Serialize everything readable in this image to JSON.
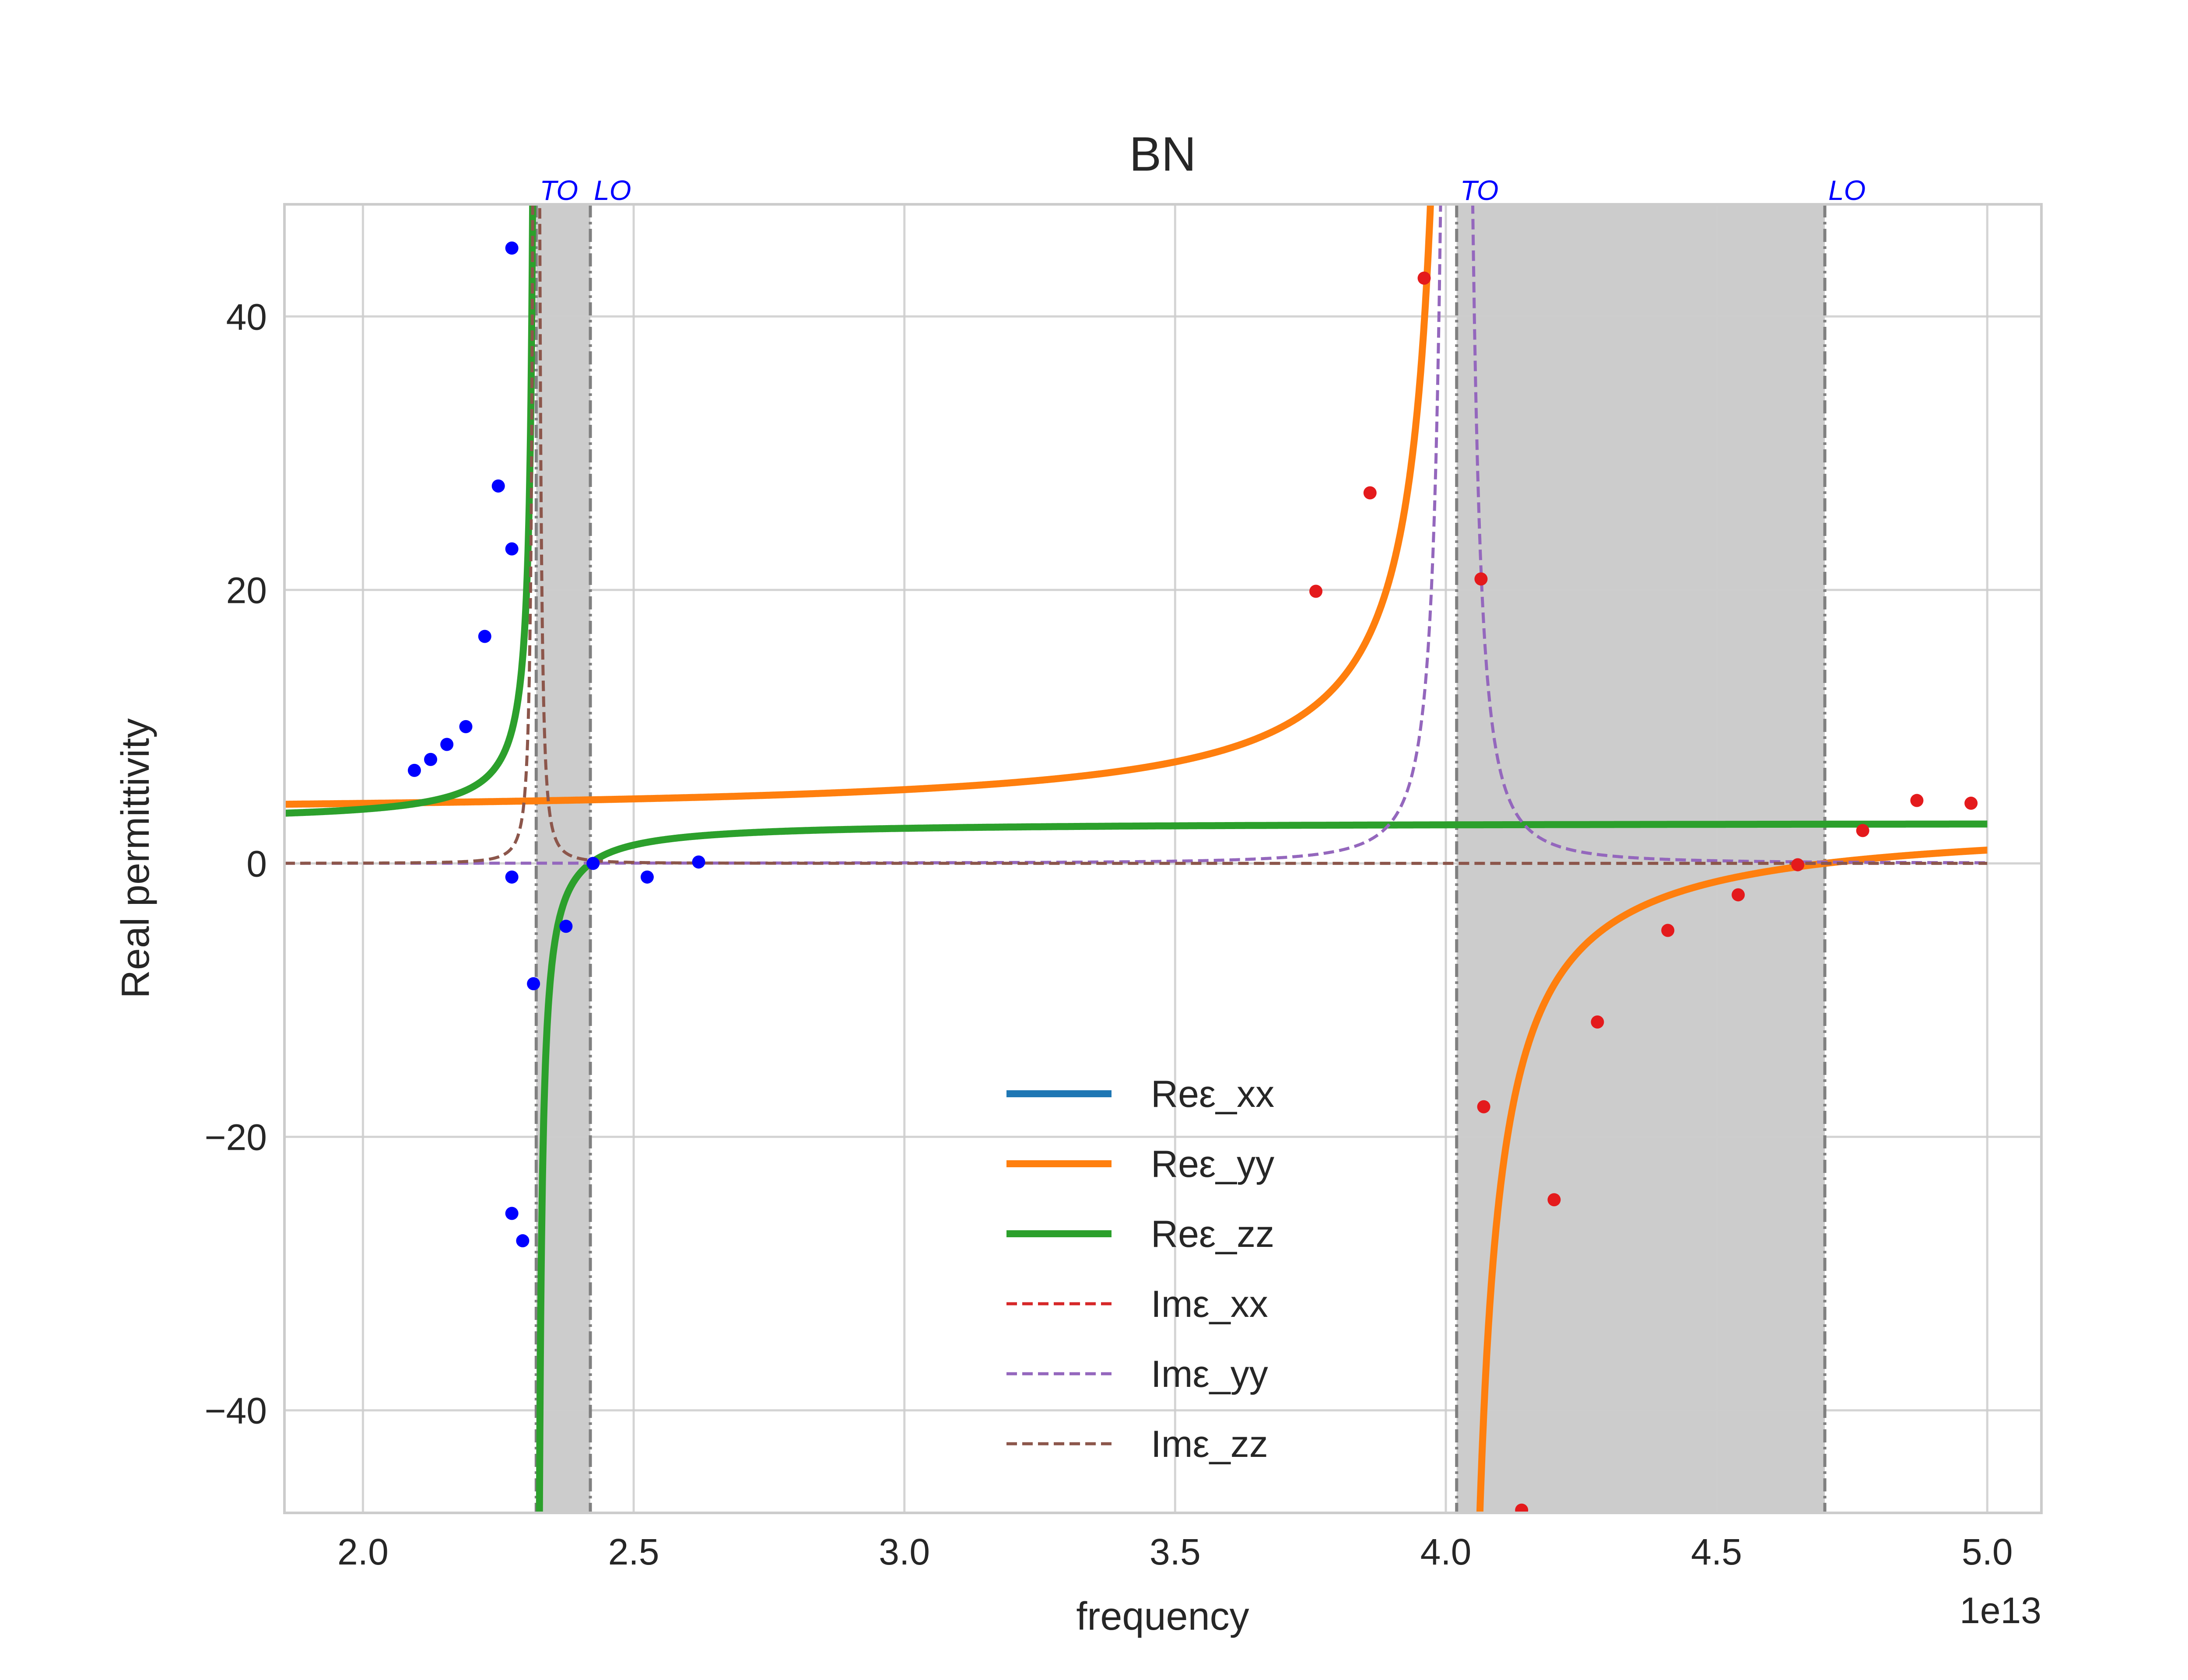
{
  "chart_data": {
    "type": "line",
    "title": "BN",
    "xlabel": "frequency",
    "ylabel": "Real permittivity",
    "x_offset_label": "1e13",
    "x_scale": 10000000000000.0,
    "xlim": [
      1.855,
      5.1
    ],
    "ylim": [
      -47.5,
      48.2
    ],
    "xticks": [
      2.0,
      2.5,
      3.0,
      3.5,
      4.0,
      4.5,
      5.0
    ],
    "xtick_labels": [
      "2.0",
      "2.5",
      "3.0",
      "3.5",
      "4.0",
      "4.5",
      "5.0"
    ],
    "yticks": [
      -40,
      -20,
      0,
      20,
      40
    ],
    "ytick_labels": [
      "−40",
      "−20",
      "0",
      "20",
      "40"
    ],
    "grid": true,
    "legend_position": "lower center",
    "bands": [
      {
        "x_start": 2.32,
        "x_end": 2.42,
        "color": "#cccccc"
      },
      {
        "x_start": 4.02,
        "x_end": 4.7,
        "color": "#cccccc"
      }
    ],
    "mode_lines": [
      {
        "label": "TO",
        "x": 2.32
      },
      {
        "label": "LO",
        "x": 2.42
      },
      {
        "label": "TO",
        "x": 4.02
      },
      {
        "label": "LO",
        "x": 4.7
      }
    ],
    "series": [
      {
        "name": "Reε_xx",
        "style": "solid",
        "color": "#1f77b4",
        "model": {
          "eps_inf": 2.95,
          "to": 4.02,
          "lo": 4.7,
          "gamma": 0.0
        },
        "x": [],
        "y": []
      },
      {
        "name": "Reε_yy",
        "style": "solid",
        "color": "#ff7f0e",
        "model": {
          "eps_inf": 2.95,
          "to": 4.02,
          "lo": 4.7,
          "gamma": 0.0
        },
        "x": [
          1.855,
          2.0,
          2.5,
          3.0,
          3.5,
          3.8,
          3.9,
          3.96,
          4.03,
          4.06,
          4.1,
          4.2,
          4.3,
          4.5,
          4.7,
          5.0
        ],
        "y": [
          6.3,
          6.4,
          6.8,
          7.7,
          10.2,
          16.0,
          26.0,
          47.0,
          -47.0,
          -40.0,
          -28.0,
          -15.5,
          -9.5,
          -4.2,
          0.0,
          1.5
        ]
      },
      {
        "name": "Reε_zz",
        "style": "solid",
        "color": "#2ca02c",
        "model": {
          "eps_inf": 2.95,
          "to": 2.32,
          "lo": 2.42,
          "gamma": 0.0
        },
        "x": [
          1.855,
          2.0,
          2.2,
          2.3,
          2.315,
          2.325,
          2.35,
          2.4,
          2.42,
          2.5,
          3.0,
          4.0,
          5.0
        ],
        "y": [
          2.8,
          3.3,
          4.8,
          22.0,
          47.0,
          -47.0,
          -9.0,
          -0.9,
          0.0,
          0.8,
          1.8,
          2.1,
          2.15
        ]
      },
      {
        "name": "Imε_xx",
        "style": "dashed",
        "color": "#d62728",
        "model": {
          "eps_inf": 0.0,
          "to": 4.02,
          "lo": 4.7,
          "gamma": 0.0
        },
        "x": [],
        "y": []
      },
      {
        "name": "Imε_yy",
        "style": "dashed",
        "color": "#9467bd",
        "model": {
          "eps_inf": 0.0,
          "to": 4.02,
          "lo": 4.7,
          "gamma": 0.012
        },
        "x": [
          1.855,
          3.9,
          4.0,
          4.02,
          4.05,
          4.2,
          5.0
        ],
        "y": [
          0.0,
          0.4,
          6.0,
          48.0,
          4.0,
          0.1,
          0.0
        ]
      },
      {
        "name": "Imε_zz",
        "style": "dashed",
        "color": "#8c564b",
        "model": {
          "eps_inf": 0.0,
          "to": 2.32,
          "lo": 2.42,
          "gamma": 0.0045
        },
        "x": [
          1.855,
          2.3,
          2.32,
          2.34,
          2.4,
          5.0
        ],
        "y": [
          0.0,
          1.0,
          22.0,
          1.0,
          0.0,
          0.0
        ]
      }
    ],
    "scatter_series": [
      {
        "color": "#0000ff",
        "points": [
          [
            2.095,
            6.8
          ],
          [
            2.125,
            7.6
          ],
          [
            2.155,
            8.7
          ],
          [
            2.19,
            10.0
          ],
          [
            2.225,
            16.6
          ],
          [
            2.25,
            27.6
          ],
          [
            2.275,
            45.0
          ],
          [
            2.275,
            23.0
          ],
          [
            2.275,
            -1.0
          ],
          [
            2.275,
            -25.6
          ],
          [
            2.295,
            -27.6
          ],
          [
            2.315,
            -8.8
          ],
          [
            2.375,
            -4.6
          ],
          [
            2.425,
            0.0
          ],
          [
            2.525,
            -1.0
          ],
          [
            2.62,
            0.1
          ]
        ]
      },
      {
        "color": "#e41a1c",
        "points": [
          [
            3.76,
            19.9
          ],
          [
            3.86,
            27.1
          ],
          [
            3.96,
            42.8
          ],
          [
            4.065,
            20.8
          ],
          [
            4.07,
            -17.8
          ],
          [
            4.2,
            -24.6
          ],
          [
            4.28,
            -11.6
          ],
          [
            4.41,
            -4.9
          ],
          [
            4.54,
            -2.3
          ],
          [
            4.65,
            -0.1
          ],
          [
            4.77,
            2.4
          ],
          [
            4.87,
            4.6
          ],
          [
            4.97,
            4.4
          ],
          [
            4.14,
            -47.3
          ]
        ]
      }
    ]
  }
}
